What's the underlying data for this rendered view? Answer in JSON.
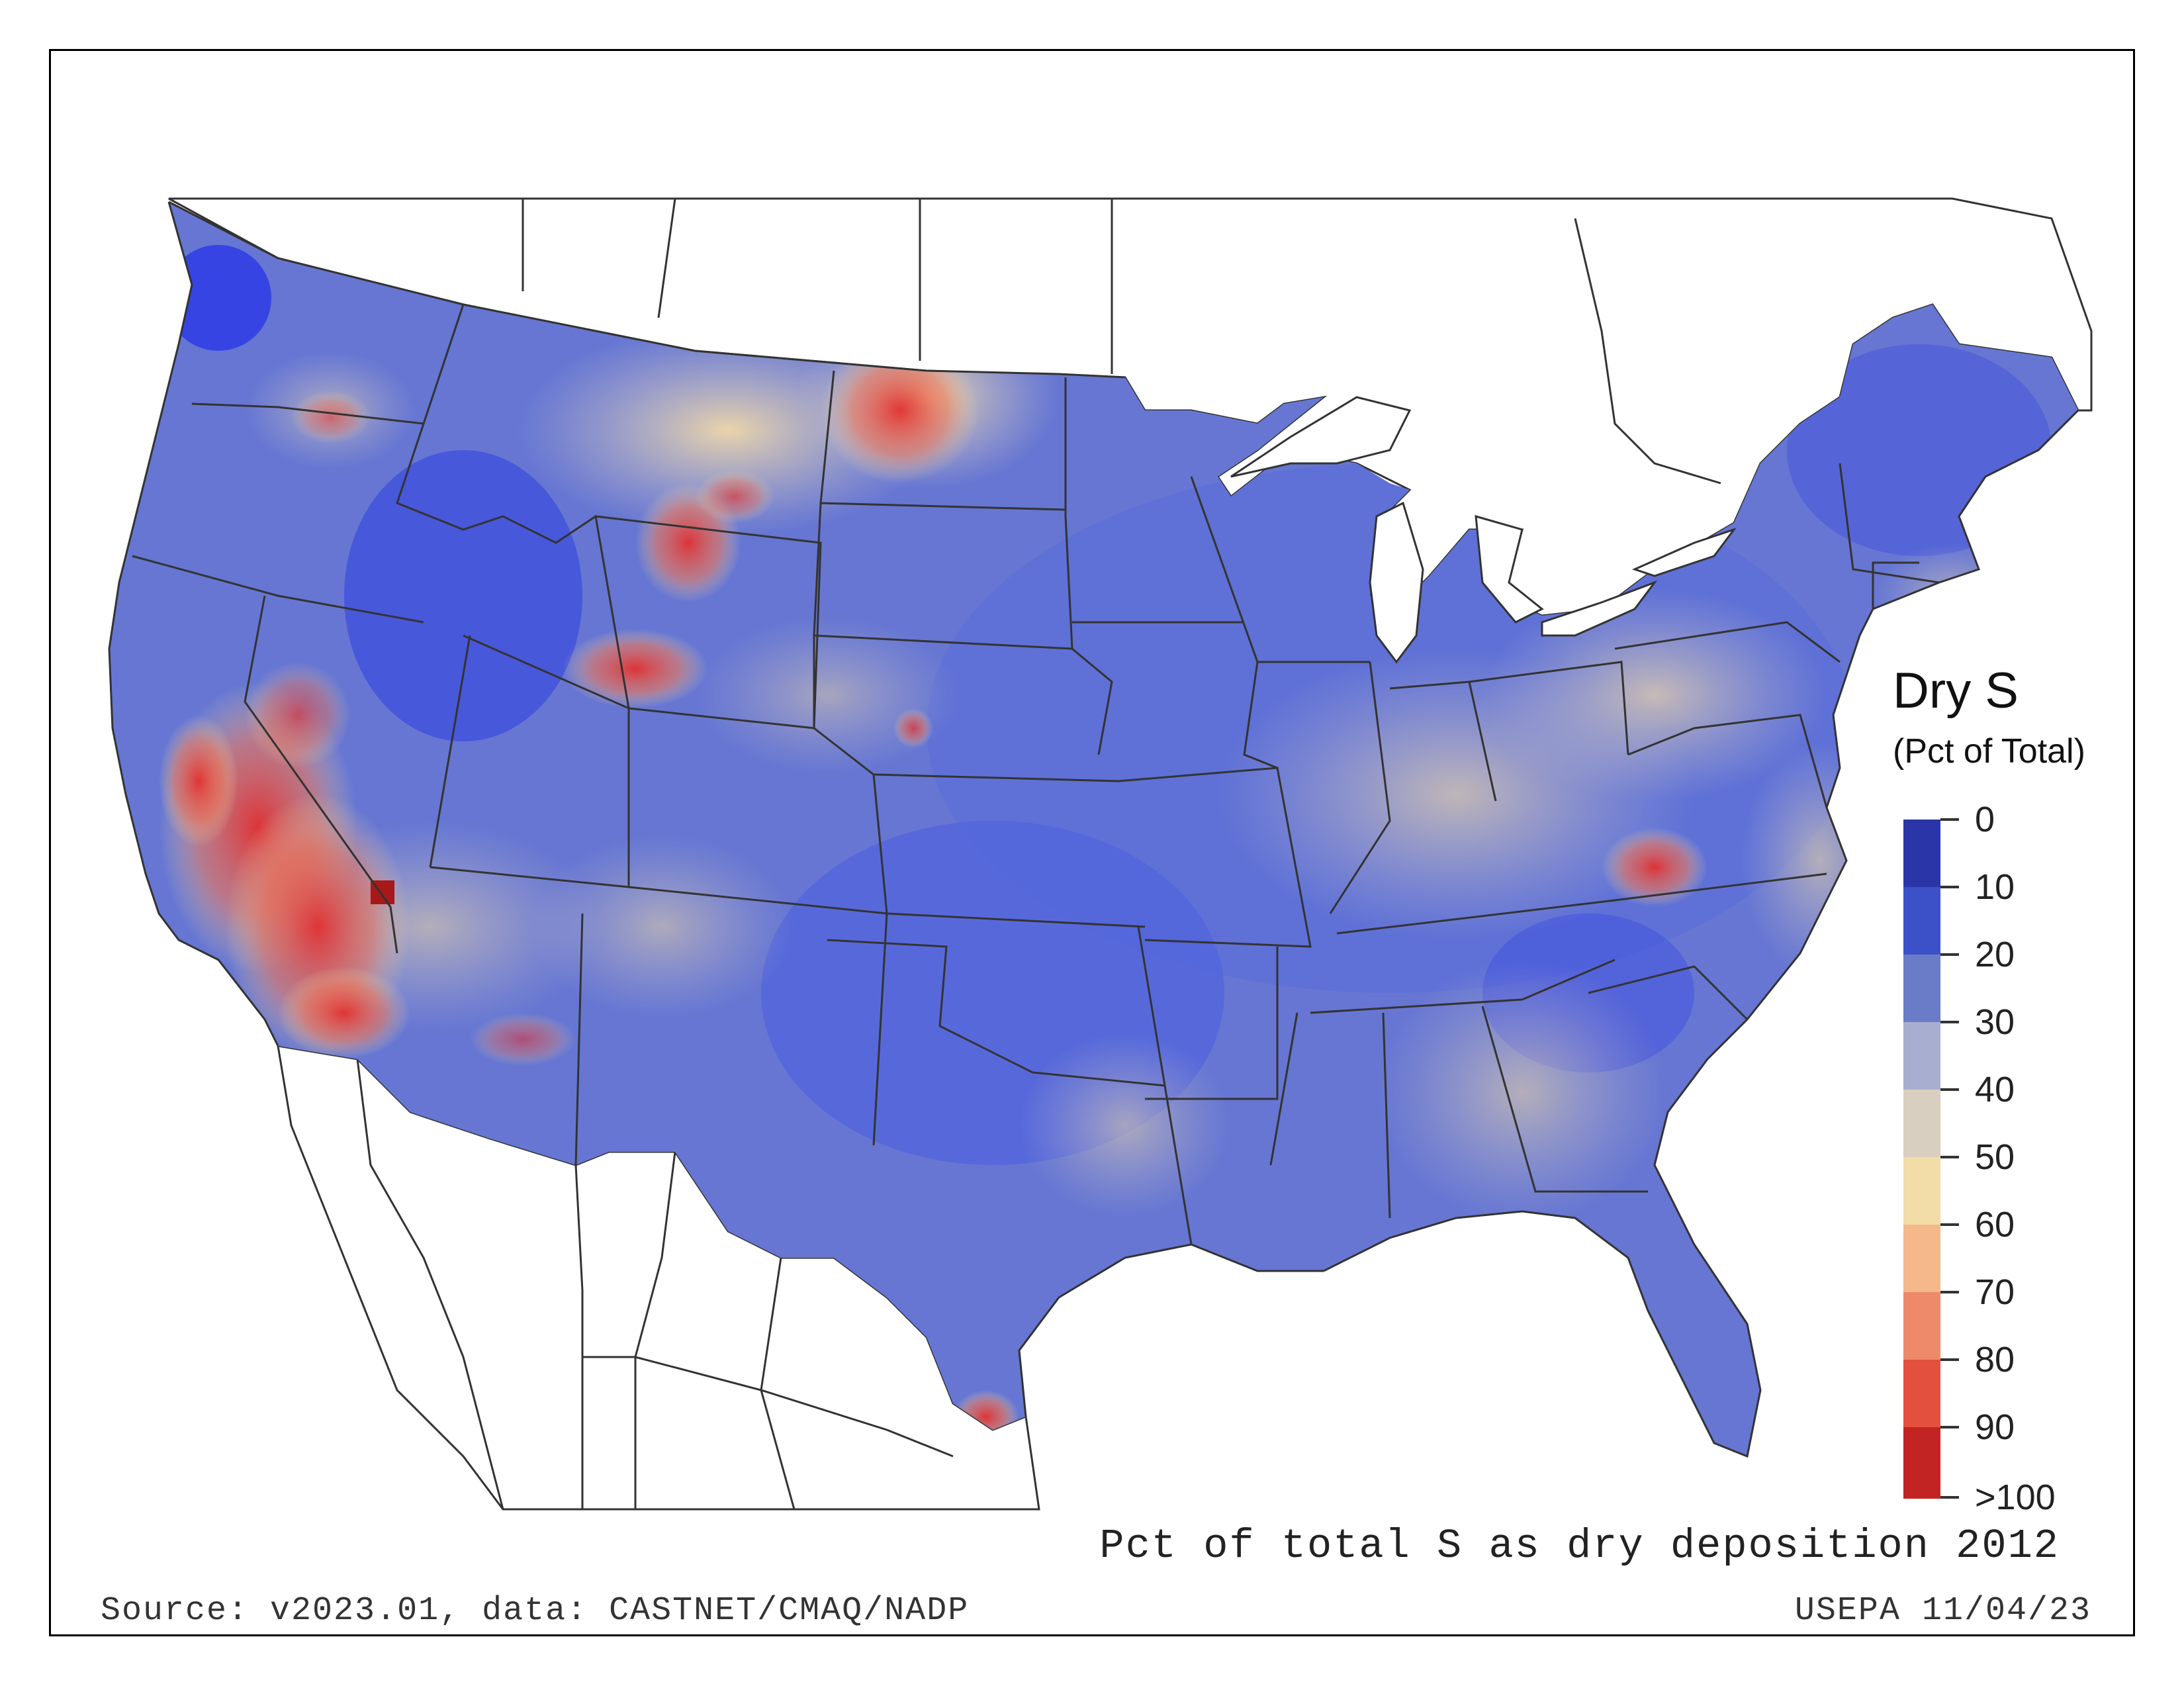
{
  "map": {
    "title": "Pct of total S as dry deposition 2012",
    "source_text": "Source: v2023.01, data: CASTNET/CMAQ/NADP",
    "agency_text": "USEPA 11/04/23"
  },
  "legend": {
    "title": "Dry S",
    "subtitle": "(Pct of Total)",
    "ticks": [
      "0",
      "10",
      "20",
      "30",
      "40",
      "50",
      "60",
      "70",
      "80",
      "90",
      ">100"
    ],
    "colors": [
      "#2a36a8",
      "#3c50c8",
      "#6a7cc8",
      "#a8aed0",
      "#d8cfc0",
      "#f2dca8",
      "#f4b88a",
      "#ee8a6a",
      "#e4503e",
      "#d42828",
      "#9c1a1a"
    ]
  },
  "colors": {
    "frame": "#000000",
    "border": "#333333",
    "water": "#ffffff",
    "low": "#4a5ed8",
    "mid": "#efdcaa",
    "high": "#e22a2a"
  }
}
